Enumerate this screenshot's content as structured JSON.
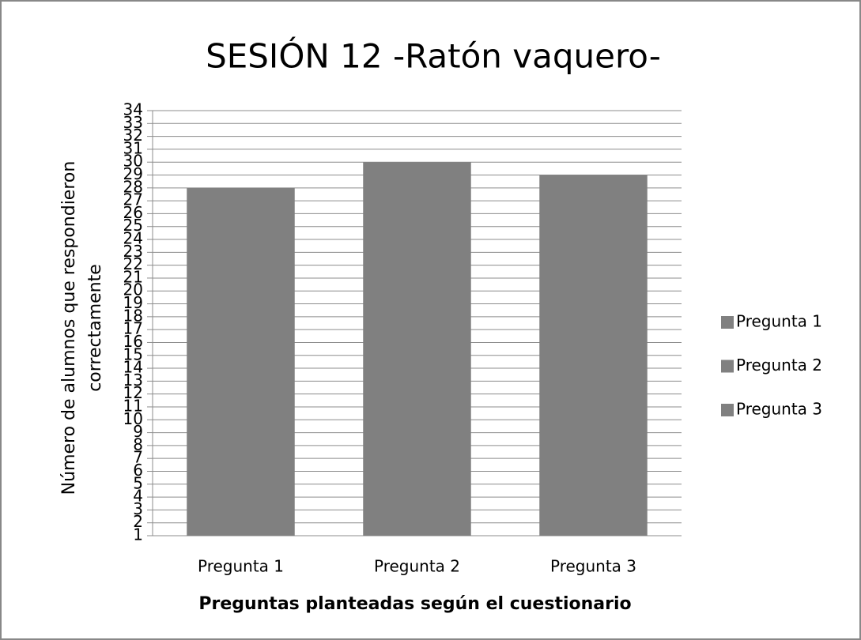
{
  "chart_data": {
    "type": "bar",
    "title": "SESIÓN 12 -Ratón vaquero-",
    "ylabel": "Número de alumnos que respondieron correctamente",
    "xlabel": "Preguntas planteadas según el cuestionario",
    "categories": [
      "Pregunta 1",
      "Pregunta 2",
      "Pregunta 3"
    ],
    "values": [
      28,
      30,
      29
    ],
    "colors": [
      "#808080",
      "#808080",
      "#808080"
    ],
    "ylim": [
      1,
      34
    ],
    "yticks": [
      1,
      2,
      3,
      4,
      5,
      6,
      7,
      8,
      9,
      10,
      11,
      12,
      13,
      14,
      15,
      16,
      17,
      18,
      19,
      20,
      21,
      22,
      23,
      24,
      25,
      26,
      27,
      28,
      29,
      30,
      31,
      32,
      33,
      34
    ],
    "grid": true,
    "legend": "right"
  }
}
